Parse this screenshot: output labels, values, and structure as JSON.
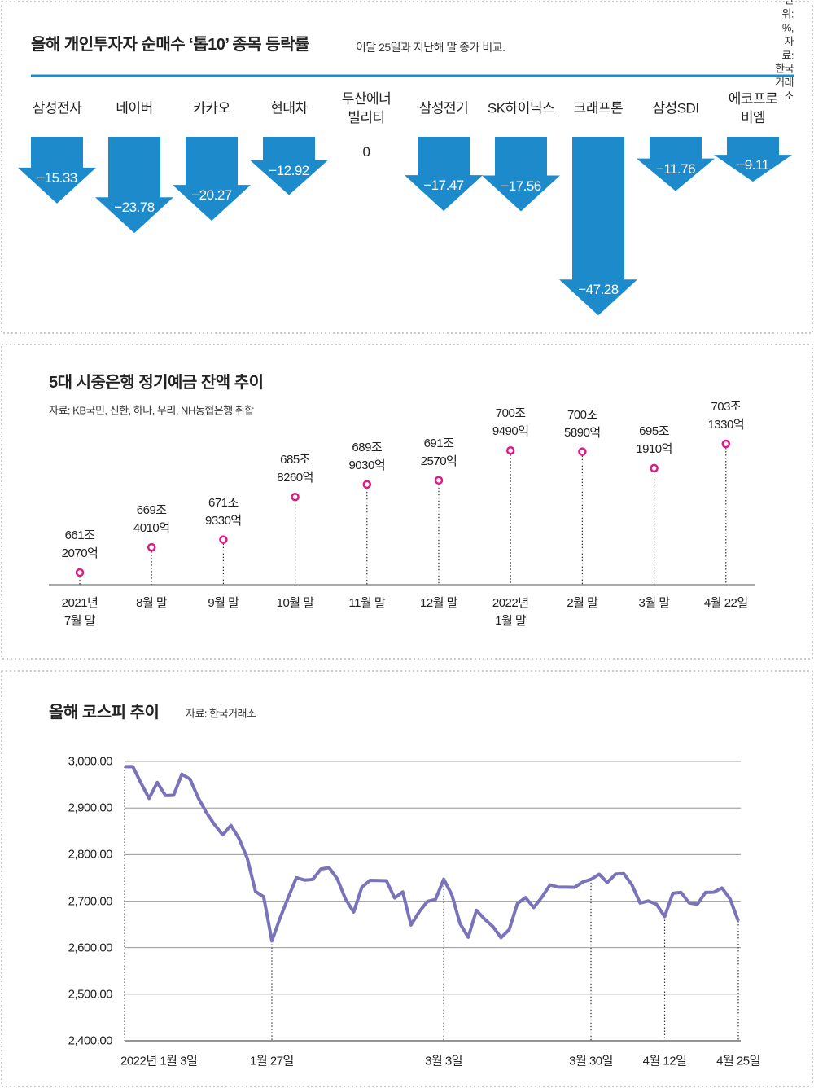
{
  "chart_data": [
    {
      "type": "arrow-bar",
      "title": "올해 개인투자자 순매수 ‘톱10’ 종목 등락률",
      "subtitle": "이달 25일과 지난해 말 종가 비교.",
      "source": "단위: %, 자료: 한국거래소",
      "categories": [
        "삼성전자",
        "네이버",
        "카카오",
        "현대차",
        "두산에너\n빌리티",
        "삼성전기",
        "SK하이닉스",
        "크래프톤",
        "삼성SDI",
        "에코프로비엠"
      ],
      "values": [
        -15.33,
        -23.78,
        -20.27,
        -12.92,
        0,
        -17.47,
        -17.56,
        -47.28,
        -11.76,
        -9.11
      ],
      "value_labels": [
        "−15.33",
        "−23.78",
        "−20.27",
        "−12.92",
        "0",
        "−17.47",
        "−17.56",
        "−47.28",
        "−11.76",
        "−9.11"
      ],
      "color": "#1d8bcb"
    },
    {
      "type": "lollipop",
      "title": "5대 시중은행 정기예금 잔액 추이",
      "source": "자료: KB국민, 신한, 하나, 우리, NH농협은행 취합",
      "categories": [
        "2021년\n7월 말",
        "8월 말",
        "9월 말",
        "10월 말",
        "11월 말",
        "12월 말",
        "2022년\n1월 말",
        "2월 말",
        "3월 말",
        "4월 22일"
      ],
      "values": [
        661.207,
        669.401,
        671.933,
        685.826,
        689.903,
        691.257,
        700.949,
        700.589,
        695.191,
        703.133
      ],
      "value_labels": [
        "661조\n2070억",
        "669조\n4010억",
        "671조\n9330억",
        "685조\n8260억",
        "689조\n9030억",
        "691조\n2570억",
        "700조\n9490억",
        "700조\n5890억",
        "695조\n1910억",
        "703조\n1330억"
      ],
      "color": "#e0198a"
    },
    {
      "type": "line",
      "title": "올해 코스피 추이",
      "source": "자료: 한국거래소",
      "categories": [
        "2022년 1월 3일",
        null,
        null,
        null,
        null,
        null,
        null,
        null,
        null,
        null,
        null,
        null,
        null,
        null,
        null,
        null,
        null,
        null,
        "1월 27일",
        null,
        null,
        null,
        null,
        null,
        null,
        null,
        null,
        null,
        null,
        null,
        null,
        null,
        null,
        null,
        null,
        null,
        null,
        null,
        null,
        "3월 3일",
        null,
        null,
        null,
        null,
        null,
        null,
        null,
        null,
        null,
        null,
        null,
        null,
        null,
        null,
        null,
        null,
        null,
        "3월 30일",
        null,
        null,
        null,
        null,
        null,
        null,
        null,
        null,
        "4월 12일",
        null,
        null,
        null,
        null,
        null,
        null,
        null,
        null,
        "4월 25일"
      ],
      "values": [
        2988.77,
        2989.24,
        2953.97,
        2920.53,
        2954.89,
        2926.72,
        2927.38,
        2972.48,
        2962.09,
        2921.92,
        2890.1,
        2864.24,
        2842.28,
        2862.68,
        2834.29,
        2792.0,
        2720.39,
        2709.24,
        2614.49,
        2663.34,
        2707.82,
        2750.26,
        2745.06,
        2746.47,
        2768.85,
        2771.93,
        2747.71,
        2704.48,
        2676.54,
        2729.68,
        2744.52,
        2744.09,
        2743.8,
        2706.79,
        2719.53,
        2648.8,
        2676.76,
        2699.18,
        2703.52,
        2747.08,
        2713.43,
        2651.31,
        2622.4,
        2680.32,
        2661.28,
        2645.65,
        2621.53,
        2638.59,
        2694.51,
        2707.62,
        2686.05,
        2708.42,
        2735.06,
        2729.98,
        2729.98,
        2729.56,
        2741.07,
        2746.74,
        2757.65,
        2739.85,
        2757.9,
        2759.2,
        2735.03,
        2695.86,
        2700.39,
        2693.1,
        2666.76,
        2716.71,
        2718.69,
        2696.06,
        2693.21,
        2718.89,
        2718.99,
        2728.21,
        2704.71,
        2657.13
      ],
      "color": "#7a73b9",
      "ylim": [
        2400,
        3000
      ],
      "yticks": [
        {
          "value": 2400,
          "label": "2,400.00"
        },
        {
          "value": 2500,
          "label": "2,500.00"
        },
        {
          "value": 2600,
          "label": "2,600.00"
        },
        {
          "value": 2700,
          "label": "2,700.00"
        },
        {
          "value": 2800,
          "label": "2,800.00"
        },
        {
          "value": 2900,
          "label": "2,900.00"
        },
        {
          "value": 3000,
          "label": "3,000.00"
        }
      ],
      "grid": true
    }
  ]
}
